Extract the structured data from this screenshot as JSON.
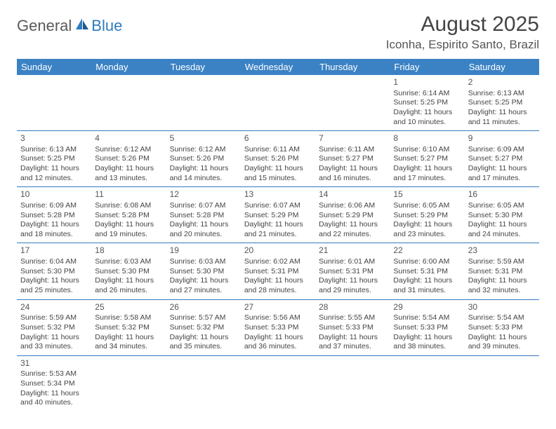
{
  "logo": {
    "text1": "General",
    "text2": "Blue"
  },
  "title": "August 2025",
  "location": "Iconha, Espirito Santo, Brazil",
  "colors": {
    "header_bg": "#3b82c4",
    "header_text": "#ffffff",
    "border": "#2f7bbf",
    "text": "#444444",
    "logo_gray": "#5a5a5a",
    "logo_blue": "#2f7bbf"
  },
  "weekdays": [
    "Sunday",
    "Monday",
    "Tuesday",
    "Wednesday",
    "Thursday",
    "Friday",
    "Saturday"
  ],
  "weeks": [
    [
      null,
      null,
      null,
      null,
      null,
      {
        "d": "1",
        "sr": "Sunrise: 6:14 AM",
        "ss": "Sunset: 5:25 PM",
        "dl": "Daylight: 11 hours and 10 minutes."
      },
      {
        "d": "2",
        "sr": "Sunrise: 6:13 AM",
        "ss": "Sunset: 5:25 PM",
        "dl": "Daylight: 11 hours and 11 minutes."
      }
    ],
    [
      {
        "d": "3",
        "sr": "Sunrise: 6:13 AM",
        "ss": "Sunset: 5:25 PM",
        "dl": "Daylight: 11 hours and 12 minutes."
      },
      {
        "d": "4",
        "sr": "Sunrise: 6:12 AM",
        "ss": "Sunset: 5:26 PM",
        "dl": "Daylight: 11 hours and 13 minutes."
      },
      {
        "d": "5",
        "sr": "Sunrise: 6:12 AM",
        "ss": "Sunset: 5:26 PM",
        "dl": "Daylight: 11 hours and 14 minutes."
      },
      {
        "d": "6",
        "sr": "Sunrise: 6:11 AM",
        "ss": "Sunset: 5:26 PM",
        "dl": "Daylight: 11 hours and 15 minutes."
      },
      {
        "d": "7",
        "sr": "Sunrise: 6:11 AM",
        "ss": "Sunset: 5:27 PM",
        "dl": "Daylight: 11 hours and 16 minutes."
      },
      {
        "d": "8",
        "sr": "Sunrise: 6:10 AM",
        "ss": "Sunset: 5:27 PM",
        "dl": "Daylight: 11 hours and 17 minutes."
      },
      {
        "d": "9",
        "sr": "Sunrise: 6:09 AM",
        "ss": "Sunset: 5:27 PM",
        "dl": "Daylight: 11 hours and 17 minutes."
      }
    ],
    [
      {
        "d": "10",
        "sr": "Sunrise: 6:09 AM",
        "ss": "Sunset: 5:28 PM",
        "dl": "Daylight: 11 hours and 18 minutes."
      },
      {
        "d": "11",
        "sr": "Sunrise: 6:08 AM",
        "ss": "Sunset: 5:28 PM",
        "dl": "Daylight: 11 hours and 19 minutes."
      },
      {
        "d": "12",
        "sr": "Sunrise: 6:07 AM",
        "ss": "Sunset: 5:28 PM",
        "dl": "Daylight: 11 hours and 20 minutes."
      },
      {
        "d": "13",
        "sr": "Sunrise: 6:07 AM",
        "ss": "Sunset: 5:29 PM",
        "dl": "Daylight: 11 hours and 21 minutes."
      },
      {
        "d": "14",
        "sr": "Sunrise: 6:06 AM",
        "ss": "Sunset: 5:29 PM",
        "dl": "Daylight: 11 hours and 22 minutes."
      },
      {
        "d": "15",
        "sr": "Sunrise: 6:05 AM",
        "ss": "Sunset: 5:29 PM",
        "dl": "Daylight: 11 hours and 23 minutes."
      },
      {
        "d": "16",
        "sr": "Sunrise: 6:05 AM",
        "ss": "Sunset: 5:30 PM",
        "dl": "Daylight: 11 hours and 24 minutes."
      }
    ],
    [
      {
        "d": "17",
        "sr": "Sunrise: 6:04 AM",
        "ss": "Sunset: 5:30 PM",
        "dl": "Daylight: 11 hours and 25 minutes."
      },
      {
        "d": "18",
        "sr": "Sunrise: 6:03 AM",
        "ss": "Sunset: 5:30 PM",
        "dl": "Daylight: 11 hours and 26 minutes."
      },
      {
        "d": "19",
        "sr": "Sunrise: 6:03 AM",
        "ss": "Sunset: 5:30 PM",
        "dl": "Daylight: 11 hours and 27 minutes."
      },
      {
        "d": "20",
        "sr": "Sunrise: 6:02 AM",
        "ss": "Sunset: 5:31 PM",
        "dl": "Daylight: 11 hours and 28 minutes."
      },
      {
        "d": "21",
        "sr": "Sunrise: 6:01 AM",
        "ss": "Sunset: 5:31 PM",
        "dl": "Daylight: 11 hours and 29 minutes."
      },
      {
        "d": "22",
        "sr": "Sunrise: 6:00 AM",
        "ss": "Sunset: 5:31 PM",
        "dl": "Daylight: 11 hours and 31 minutes."
      },
      {
        "d": "23",
        "sr": "Sunrise: 5:59 AM",
        "ss": "Sunset: 5:31 PM",
        "dl": "Daylight: 11 hours and 32 minutes."
      }
    ],
    [
      {
        "d": "24",
        "sr": "Sunrise: 5:59 AM",
        "ss": "Sunset: 5:32 PM",
        "dl": "Daylight: 11 hours and 33 minutes."
      },
      {
        "d": "25",
        "sr": "Sunrise: 5:58 AM",
        "ss": "Sunset: 5:32 PM",
        "dl": "Daylight: 11 hours and 34 minutes."
      },
      {
        "d": "26",
        "sr": "Sunrise: 5:57 AM",
        "ss": "Sunset: 5:32 PM",
        "dl": "Daylight: 11 hours and 35 minutes."
      },
      {
        "d": "27",
        "sr": "Sunrise: 5:56 AM",
        "ss": "Sunset: 5:33 PM",
        "dl": "Daylight: 11 hours and 36 minutes."
      },
      {
        "d": "28",
        "sr": "Sunrise: 5:55 AM",
        "ss": "Sunset: 5:33 PM",
        "dl": "Daylight: 11 hours and 37 minutes."
      },
      {
        "d": "29",
        "sr": "Sunrise: 5:54 AM",
        "ss": "Sunset: 5:33 PM",
        "dl": "Daylight: 11 hours and 38 minutes."
      },
      {
        "d": "30",
        "sr": "Sunrise: 5:54 AM",
        "ss": "Sunset: 5:33 PM",
        "dl": "Daylight: 11 hours and 39 minutes."
      }
    ],
    [
      {
        "d": "31",
        "sr": "Sunrise: 5:53 AM",
        "ss": "Sunset: 5:34 PM",
        "dl": "Daylight: 11 hours and 40 minutes."
      },
      null,
      null,
      null,
      null,
      null,
      null
    ]
  ]
}
